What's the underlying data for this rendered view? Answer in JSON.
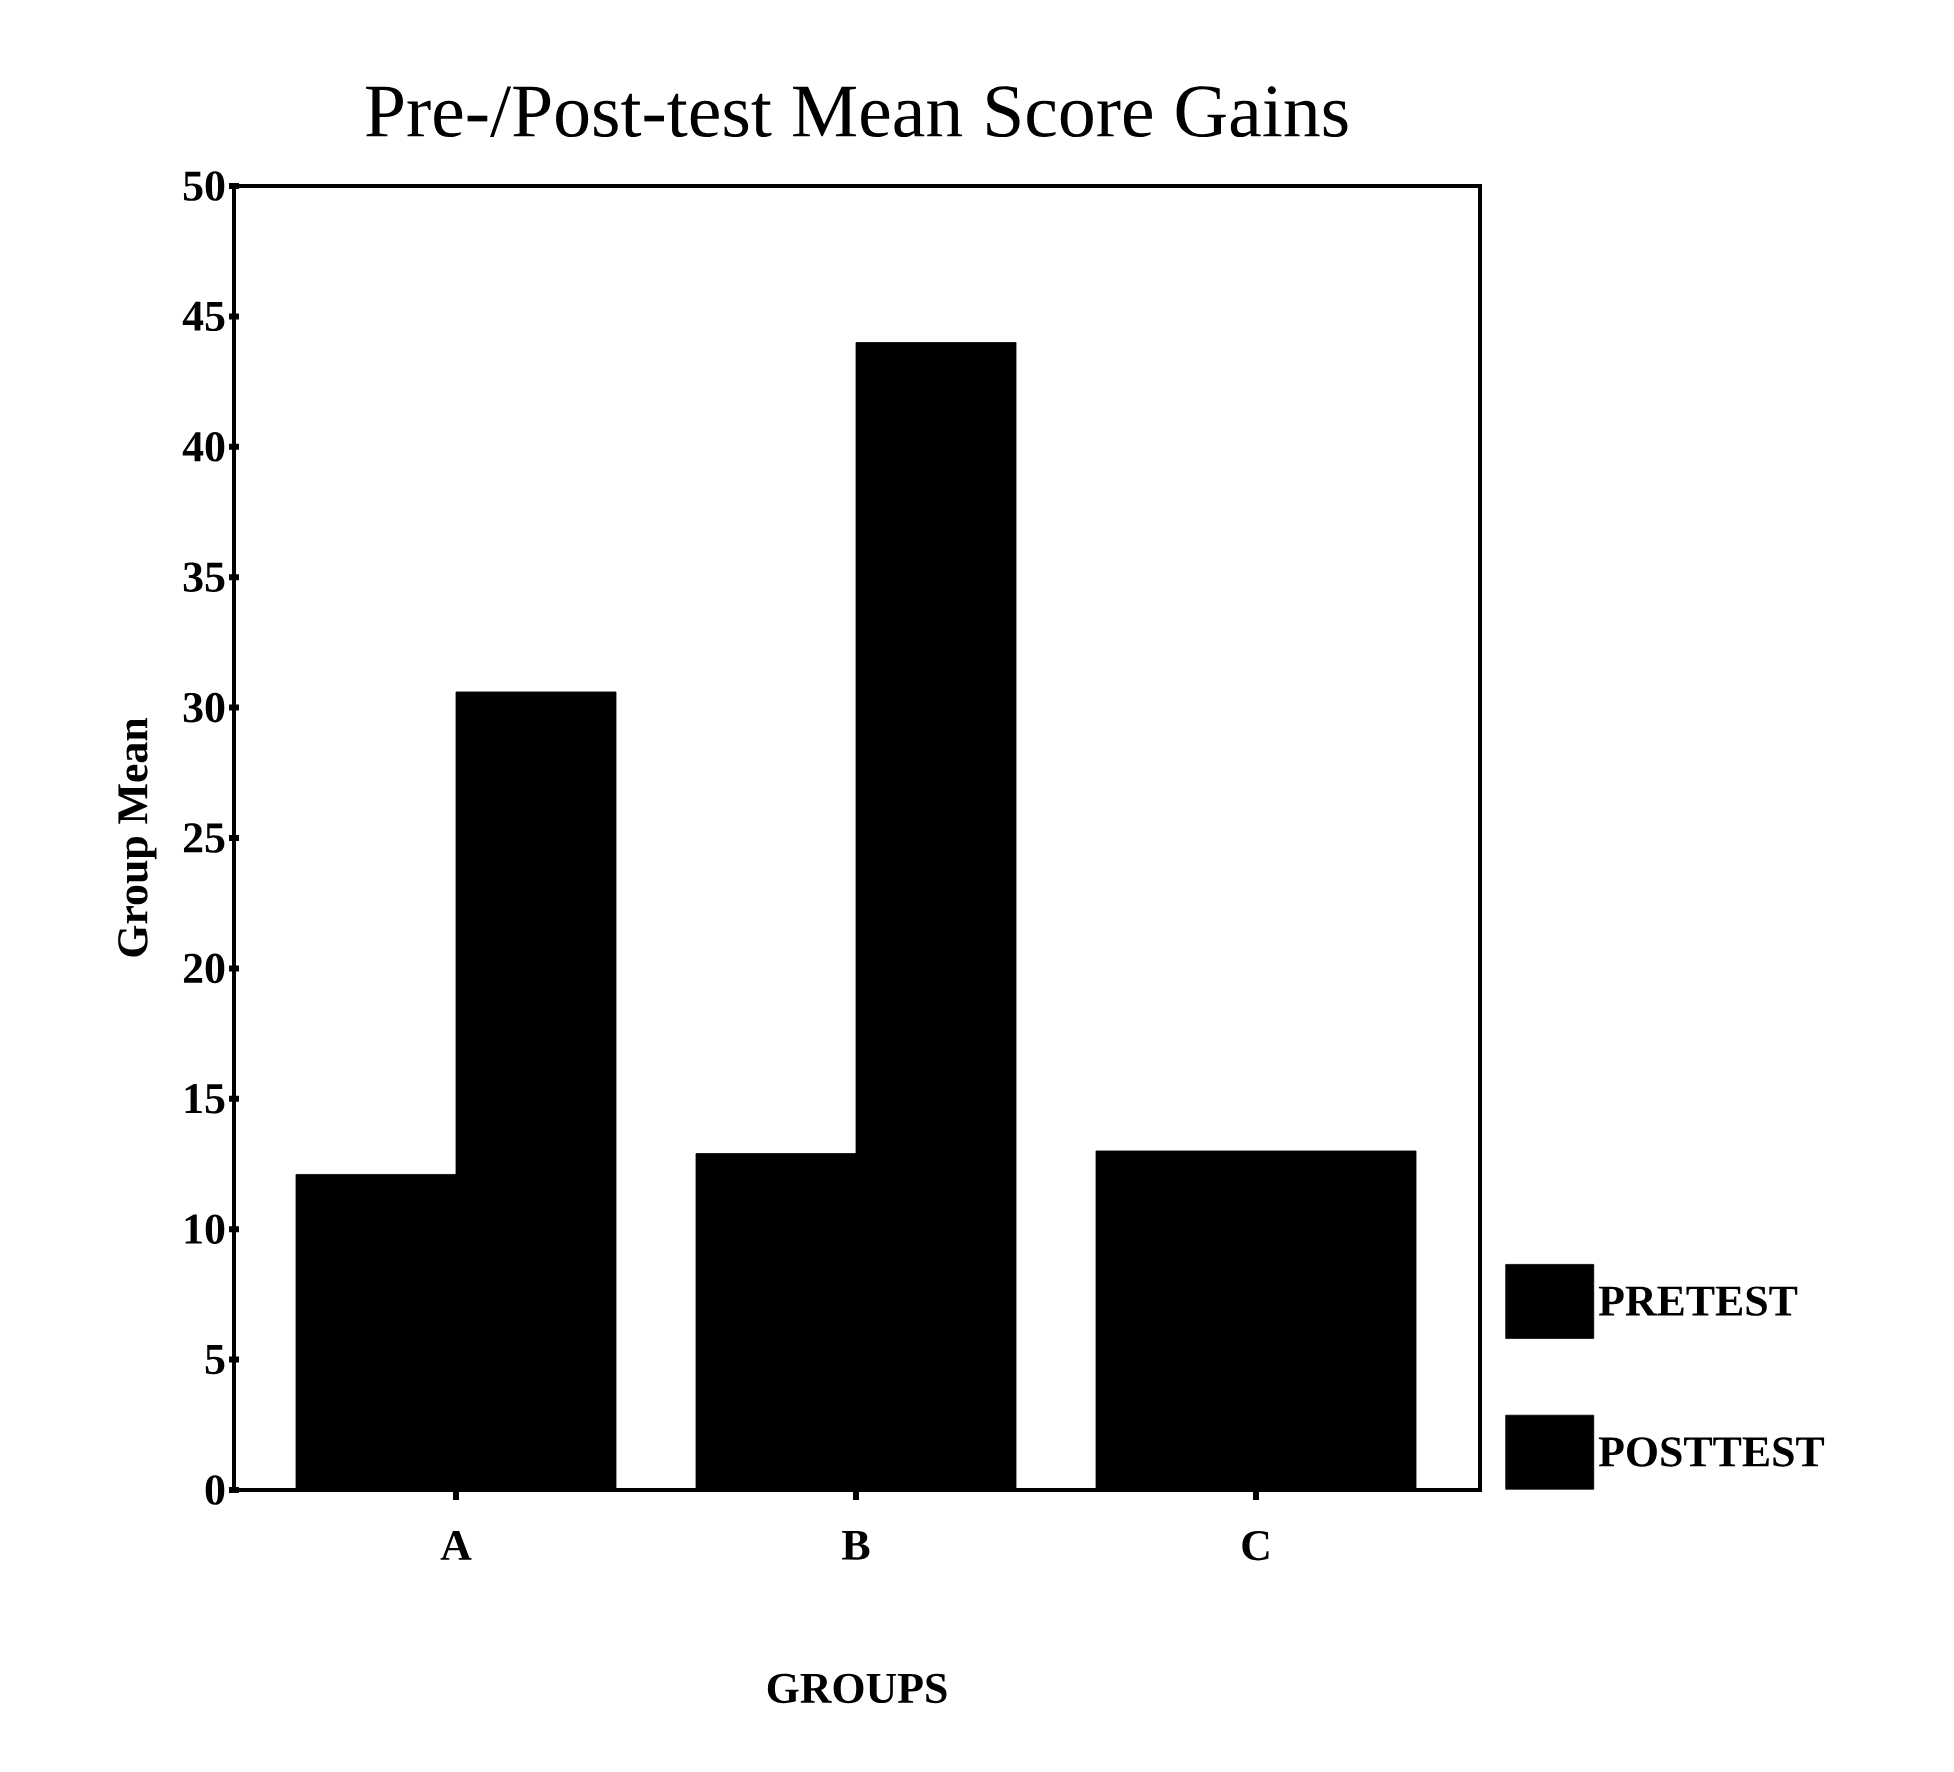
{
  "chart_data": {
    "type": "bar",
    "title": "Pre-/Post-test Mean Score Gains",
    "xlabel": "GROUPS",
    "ylabel": "Group Mean",
    "categories": [
      "A",
      "B",
      "C"
    ],
    "series": [
      {
        "name": "PRETEST",
        "color": "#000000",
        "values": [
          12.1,
          12.9,
          13.0
        ]
      },
      {
        "name": "POSTTEST",
        "color": "#000000",
        "values": [
          30.6,
          44.0,
          13.0
        ]
      }
    ],
    "ylim": [
      0,
      50
    ],
    "yticks": [
      0,
      5,
      10,
      15,
      20,
      25,
      30,
      35,
      40,
      45,
      50
    ],
    "grid": false,
    "legend": "right"
  }
}
